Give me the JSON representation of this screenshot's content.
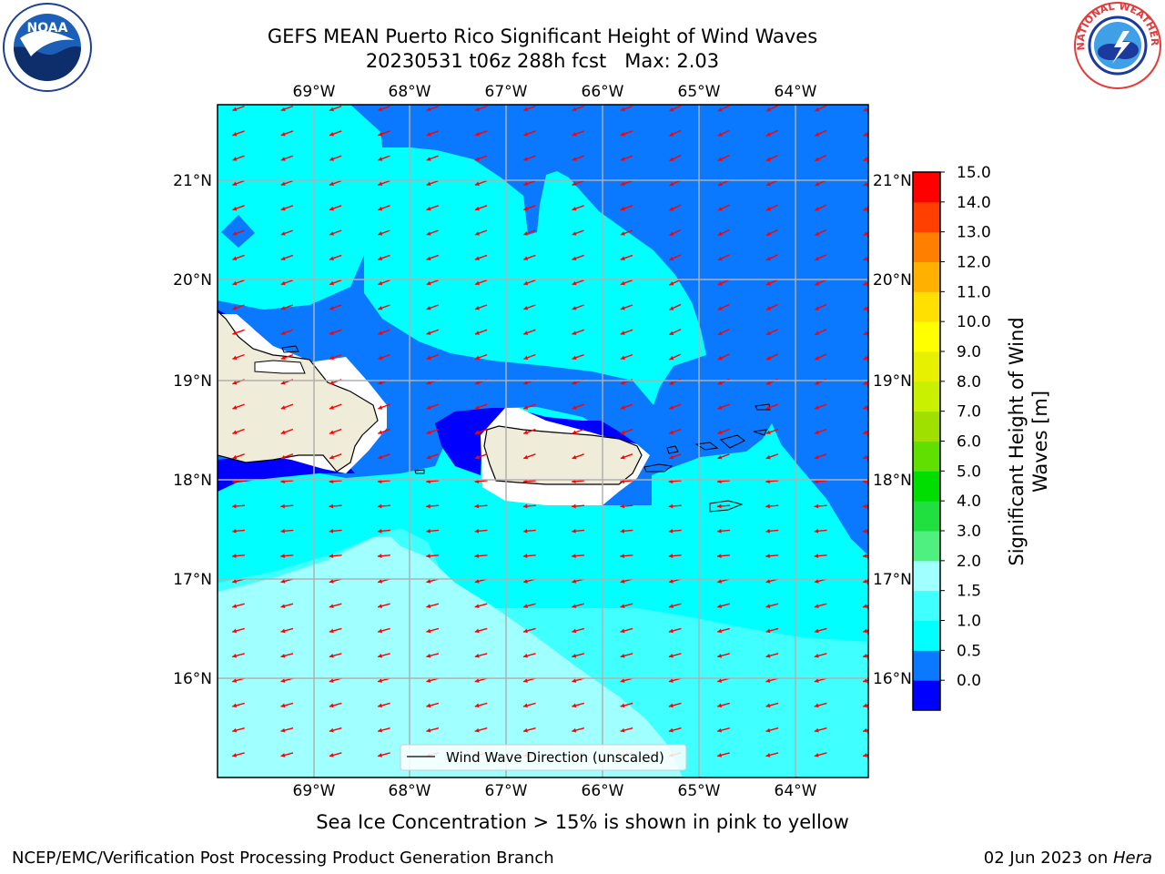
{
  "header": {
    "title_line1": "GEFS MEAN Puerto Rico Significant Height of Wind Waves",
    "title_line2": "20230531 t06z 288h fcst   Max: 2.03"
  },
  "logos": {
    "left": {
      "icon": "noaa-logo",
      "text": "NOAA"
    },
    "right": {
      "icon": "national-weather-service-logo",
      "text": "NATIONAL WEATHER SERVICE"
    }
  },
  "map": {
    "lon_labels": [
      "69°W",
      "68°W",
      "67°W",
      "66°W",
      "65°W",
      "64°W"
    ],
    "lat_labels": [
      "21°N",
      "20°N",
      "19°N",
      "18°N",
      "17°N",
      "16°N"
    ],
    "legend_label": "Wind Wave Direction (unscaled)",
    "arrow_color": "#ff0000",
    "land_color": "#efedda",
    "grid_color": "#b0b0b0"
  },
  "colorbar": {
    "label_line1": "Significant Height of Wind",
    "label_line2": "Waves [m]",
    "ticks": [
      "15.0",
      "14.0",
      "13.0",
      "12.0",
      "11.0",
      "10.0",
      "9.0",
      "8.0",
      "7.0",
      "6.0",
      "5.0",
      "4.0",
      "3.0",
      "2.0",
      "1.5",
      "1.0",
      "0.5",
      "0.0"
    ],
    "colors_bottom_to_top": [
      "#0000ff",
      "#0a78ff",
      "#00ffff",
      "#40ffff",
      "#a0ffff",
      "#50f080",
      "#20e040",
      "#00dd00",
      "#60e000",
      "#a0e000",
      "#c8f000",
      "#e6f000",
      "#ffff00",
      "#ffe000",
      "#ffb000",
      "#ff8000",
      "#ff4000",
      "#ff0000"
    ]
  },
  "notes": {
    "sea_ice": "Sea Ice Concentration > 15% is shown in pink to yellow"
  },
  "footer": {
    "left": "NCEP/EMC/Verification Post Processing Product Generation Branch",
    "right_prefix": "02 Jun 2023 on ",
    "right_host": "Hera"
  }
}
